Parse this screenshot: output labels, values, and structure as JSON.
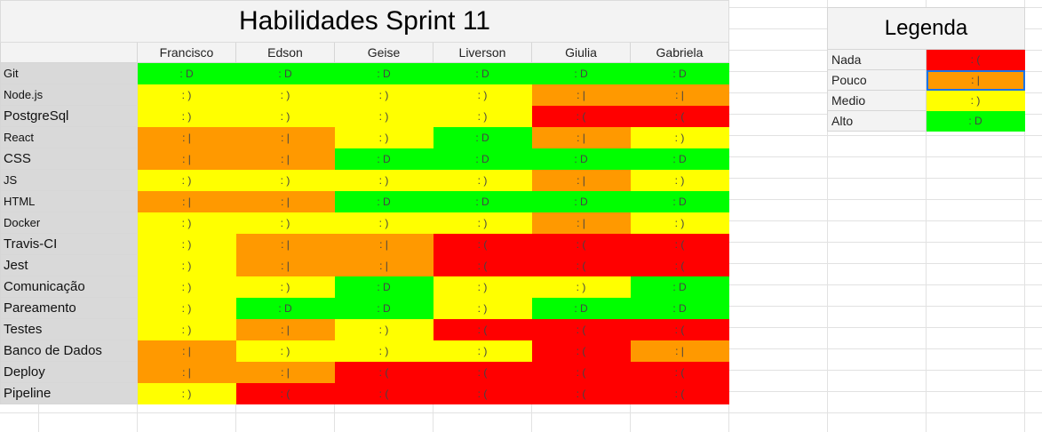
{
  "sheet": {
    "title": "Habilidades Sprint 11",
    "people": [
      "Francisco",
      "Edson",
      "Geise",
      "Liverson",
      "Giulia",
      "Gabriela"
    ],
    "rows": [
      {
        "skill": "Git",
        "levels": [
          "alto",
          "alto",
          "alto",
          "alto",
          "alto",
          "alto"
        ]
      },
      {
        "skill": "Node.js",
        "levels": [
          "medio",
          "medio",
          "medio",
          "medio",
          "pouco",
          "pouco"
        ]
      },
      {
        "skill": "PostgreSql",
        "levels": [
          "medio",
          "medio",
          "medio",
          "medio",
          "nada",
          "nada"
        ]
      },
      {
        "skill": "React",
        "levels": [
          "pouco",
          "pouco",
          "medio",
          "alto",
          "pouco",
          "medio"
        ]
      },
      {
        "skill": "CSS",
        "levels": [
          "pouco",
          "pouco",
          "alto",
          "alto",
          "alto",
          "alto"
        ]
      },
      {
        "skill": "JS",
        "levels": [
          "medio",
          "medio",
          "medio",
          "medio",
          "pouco",
          "medio"
        ]
      },
      {
        "skill": "HTML",
        "levels": [
          "pouco",
          "pouco",
          "alto",
          "alto",
          "alto",
          "alto"
        ]
      },
      {
        "skill": "Docker",
        "levels": [
          "medio",
          "medio",
          "medio",
          "medio",
          "pouco",
          "medio"
        ]
      },
      {
        "skill": "Travis-CI",
        "levels": [
          "medio",
          "pouco",
          "pouco",
          "nada",
          "nada",
          "nada"
        ]
      },
      {
        "skill": "Jest",
        "levels": [
          "medio",
          "pouco",
          "pouco",
          "nada",
          "nada",
          "nada"
        ]
      },
      {
        "skill": "Comunicação",
        "levels": [
          "medio",
          "medio",
          "alto",
          "medio",
          "medio",
          "alto"
        ]
      },
      {
        "skill": "Pareamento",
        "levels": [
          "medio",
          "alto",
          "alto",
          "medio",
          "alto",
          "alto"
        ]
      },
      {
        "skill": "Testes",
        "levels": [
          "medio",
          "pouco",
          "medio",
          "nada",
          "nada",
          "nada"
        ]
      },
      {
        "skill": "Banco de Dados",
        "levels": [
          "pouco",
          "medio",
          "medio",
          "medio",
          "nada",
          "pouco"
        ]
      },
      {
        "skill": "Deploy",
        "levels": [
          "pouco",
          "pouco",
          "nada",
          "nada",
          "nada",
          "nada"
        ]
      },
      {
        "skill": "Pipeline",
        "levels": [
          "medio",
          "nada",
          "nada",
          "nada",
          "nada",
          "nada"
        ]
      }
    ]
  },
  "levels": {
    "nada": {
      "face": ": (",
      "color": "#ff0000"
    },
    "pouco": {
      "face": ": |",
      "color": "#ff9900"
    },
    "medio": {
      "face": ": )",
      "color": "#ffff00"
    },
    "alto": {
      "face": ": D",
      "color": "#00ff00"
    }
  },
  "legend": {
    "title": "Legenda",
    "items": [
      {
        "label": "Nada",
        "level": "nada"
      },
      {
        "label": "Pouco",
        "level": "pouco"
      },
      {
        "label": "Medio",
        "level": "medio"
      },
      {
        "label": "Alto",
        "level": "alto"
      }
    ],
    "selected_level": "pouco"
  }
}
